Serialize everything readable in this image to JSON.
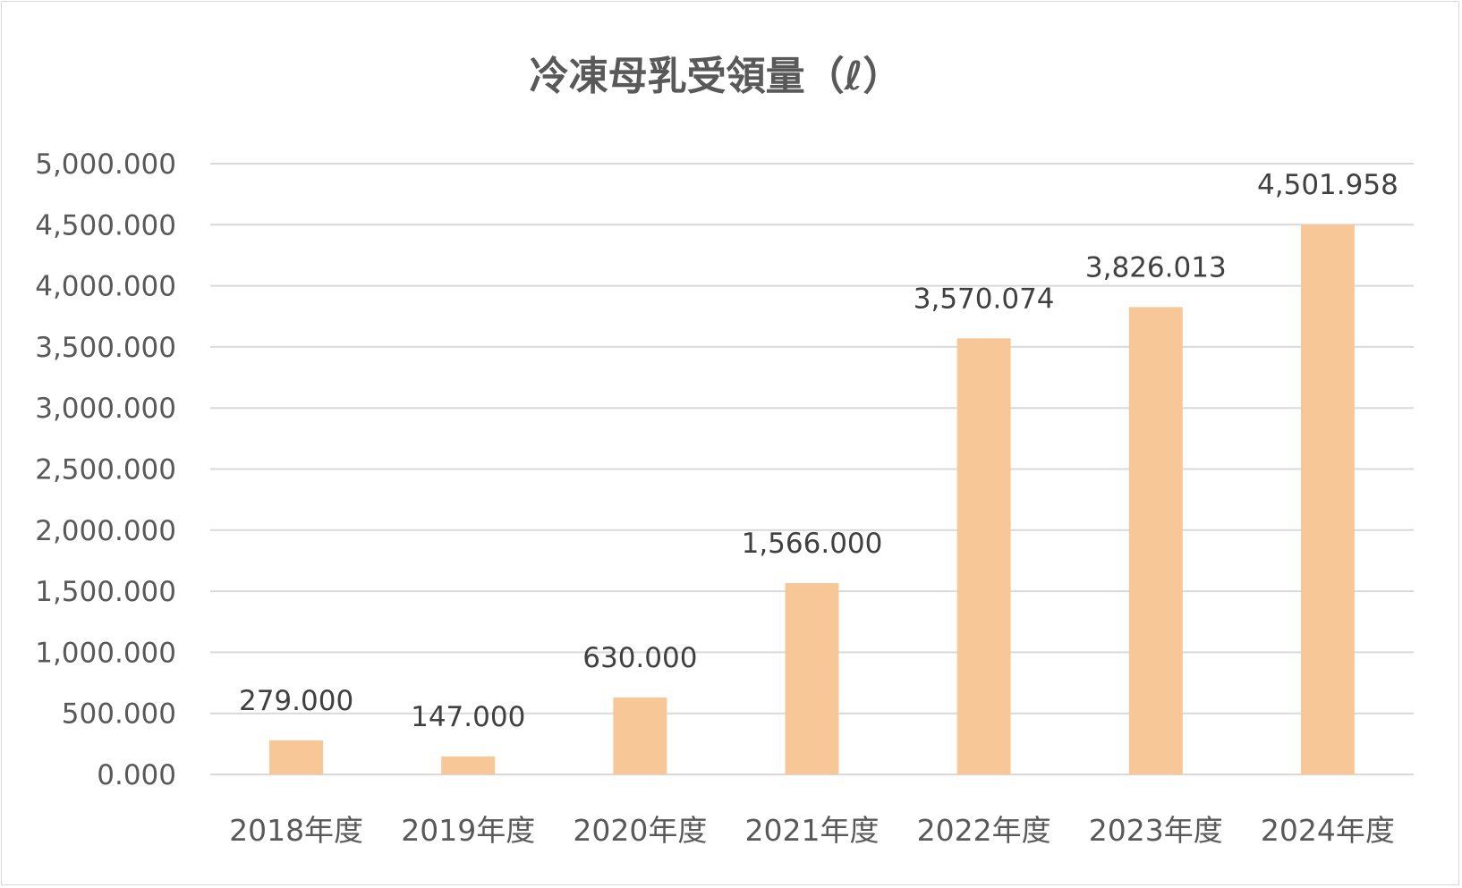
{
  "chart_data": {
    "type": "bar",
    "title": "冷凍母乳受領量（ℓ）",
    "xlabel": "",
    "ylabel": "",
    "categories": [
      "2018年度",
      "2019年度",
      "2020年度",
      "2021年度",
      "2022年度",
      "2023年度",
      "2024年度"
    ],
    "values": [
      279.0,
      147.0,
      630.0,
      1566.0,
      3570.074,
      3826.013,
      4501.958
    ],
    "data_labels": [
      "279.000",
      "147.000",
      "630.000",
      "1,566.000",
      "3,570.074",
      "3,826.013",
      "4,501.958"
    ],
    "ylim": [
      0,
      5000
    ],
    "y_ticks": [
      0,
      500,
      1000,
      1500,
      2000,
      2500,
      3000,
      3500,
      4000,
      4500,
      5000
    ],
    "y_tick_labels": [
      "0.000",
      "500.000",
      "1,000.000",
      "1,500.000",
      "2,000.000",
      "2,500.000",
      "3,000.000",
      "3,500.000",
      "4,000.000",
      "4,500.000",
      "5,000.000"
    ],
    "grid": true,
    "legend": "none",
    "colors": {
      "bar": "#F8C797",
      "grid": "#D9D9D9",
      "axis_text": "#595959",
      "label_text": "#404040",
      "title_text": "#595959"
    }
  }
}
